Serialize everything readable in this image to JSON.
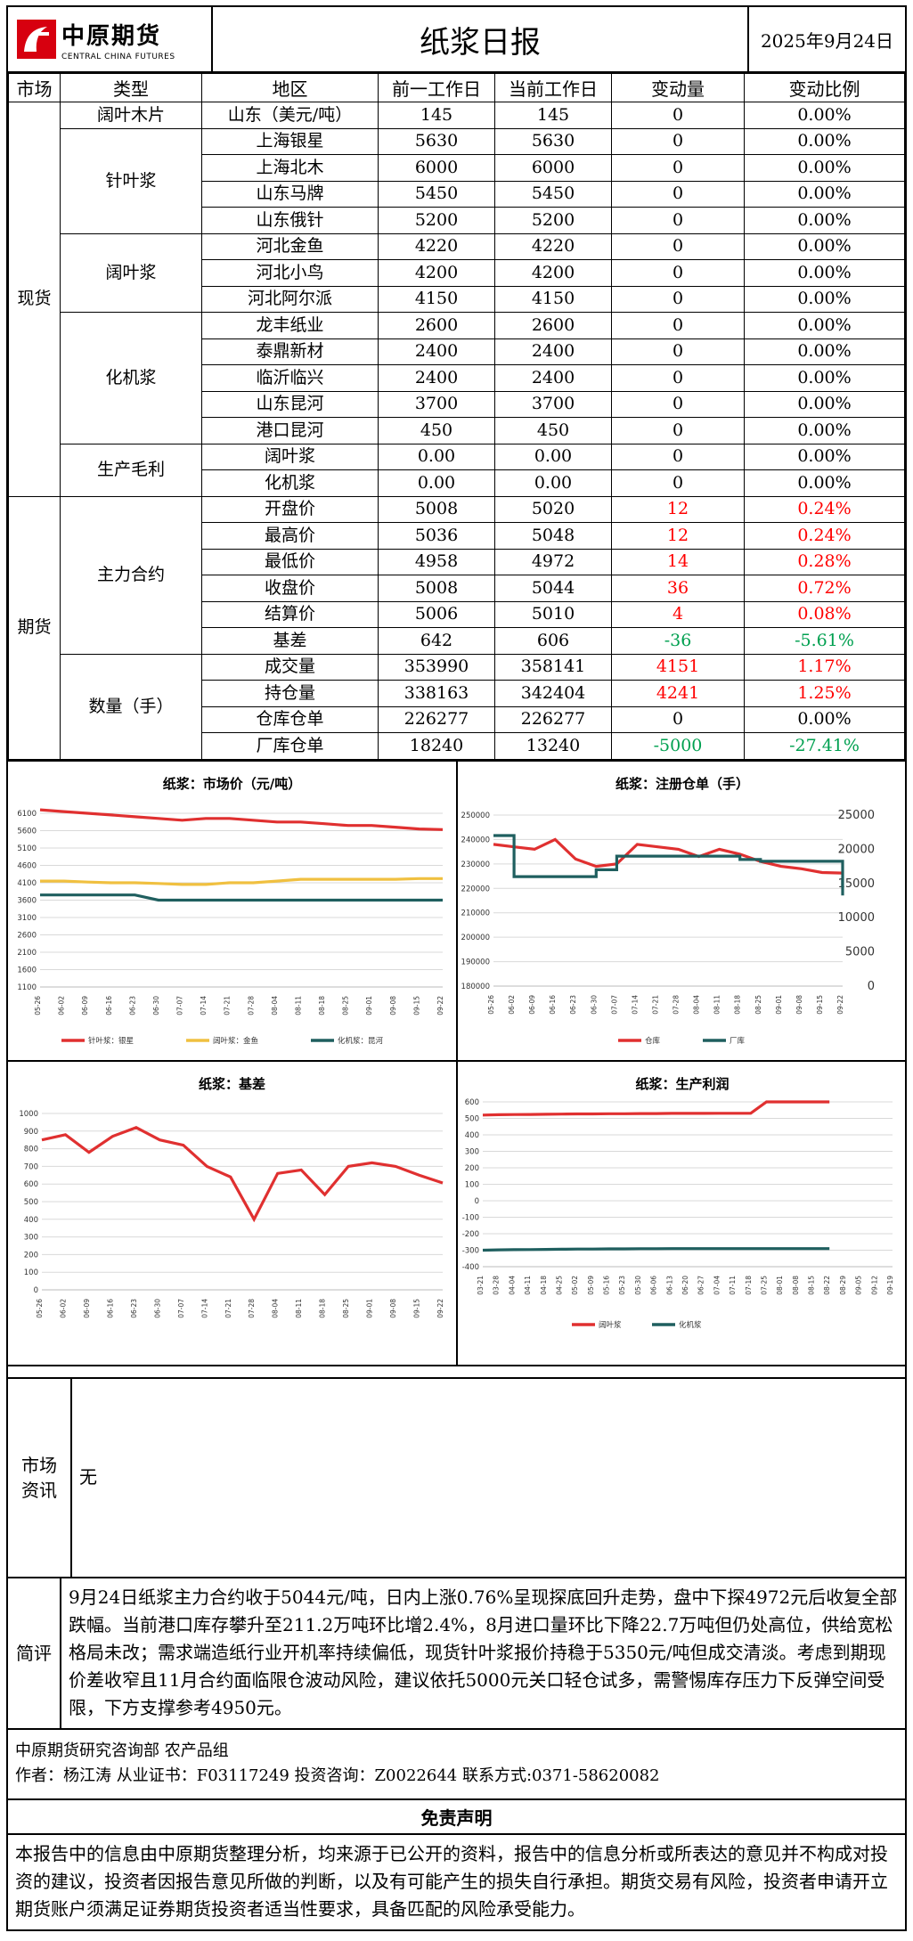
{
  "header": {
    "logo_cn": "中原期货",
    "logo_en": "CENTRAL CHINA FUTURES",
    "title": "纸浆日报",
    "date": "2025年9月24日"
  },
  "columns": [
    "市场",
    "类型",
    "地区",
    "前一工作日",
    "当前工作日",
    "变动量",
    "变动比例"
  ],
  "spot_label": "现货",
  "futures_label": "期货",
  "rows": [
    {
      "type": "阔叶木片",
      "region": "山东（美元/吨）",
      "prev": "145",
      "cur": "145",
      "chg": "0",
      "pct": "0.00%",
      "c": ""
    },
    {
      "type": "针叶浆",
      "region": "上海银星",
      "prev": "5630",
      "cur": "5630",
      "chg": "0",
      "pct": "0.00%",
      "c": ""
    },
    {
      "type": "",
      "region": "上海北木",
      "prev": "6000",
      "cur": "6000",
      "chg": "0",
      "pct": "0.00%",
      "c": ""
    },
    {
      "type": "",
      "region": "山东马牌",
      "prev": "5450",
      "cur": "5450",
      "chg": "0",
      "pct": "0.00%",
      "c": ""
    },
    {
      "type": "",
      "region": "山东俄针",
      "prev": "5200",
      "cur": "5200",
      "chg": "0",
      "pct": "0.00%",
      "c": ""
    },
    {
      "type": "阔叶浆",
      "region": "河北金鱼",
      "prev": "4220",
      "cur": "4220",
      "chg": "0",
      "pct": "0.00%",
      "c": ""
    },
    {
      "type": "",
      "region": "河北小鸟",
      "prev": "4200",
      "cur": "4200",
      "chg": "0",
      "pct": "0.00%",
      "c": ""
    },
    {
      "type": "",
      "region": "河北阿尔派",
      "prev": "4150",
      "cur": "4150",
      "chg": "0",
      "pct": "0.00%",
      "c": ""
    },
    {
      "type": "化机浆",
      "region": "龙丰纸业",
      "prev": "2600",
      "cur": "2600",
      "chg": "0",
      "pct": "0.00%",
      "c": ""
    },
    {
      "type": "",
      "region": "泰鼎新材",
      "prev": "2400",
      "cur": "2400",
      "chg": "0",
      "pct": "0.00%",
      "c": ""
    },
    {
      "type": "",
      "region": "临沂临兴",
      "prev": "2400",
      "cur": "2400",
      "chg": "0",
      "pct": "0.00%",
      "c": ""
    },
    {
      "type": "",
      "region": "山东昆河",
      "prev": "3700",
      "cur": "3700",
      "chg": "0",
      "pct": "0.00%",
      "c": ""
    },
    {
      "type": "",
      "region": "港口昆河",
      "prev": "450",
      "cur": "450",
      "chg": "0",
      "pct": "0.00%",
      "c": ""
    },
    {
      "type": "生产毛利",
      "region": "阔叶浆",
      "prev": "0.00",
      "cur": "0.00",
      "chg": "0",
      "pct": "0.00%",
      "c": ""
    },
    {
      "type": "",
      "region": "化机浆",
      "prev": "0.00",
      "cur": "0.00",
      "chg": "0",
      "pct": "0.00%",
      "c": ""
    },
    {
      "type": "主力合约",
      "region": "开盘价",
      "prev": "5008",
      "cur": "5020",
      "chg": "12",
      "pct": "0.24%",
      "c": "red"
    },
    {
      "type": "",
      "region": "最高价",
      "prev": "5036",
      "cur": "5048",
      "chg": "12",
      "pct": "0.24%",
      "c": "red"
    },
    {
      "type": "",
      "region": "最低价",
      "prev": "4958",
      "cur": "4972",
      "chg": "14",
      "pct": "0.28%",
      "c": "red"
    },
    {
      "type": "",
      "region": "收盘价",
      "prev": "5008",
      "cur": "5044",
      "chg": "36",
      "pct": "0.72%",
      "c": "red"
    },
    {
      "type": "",
      "region": "结算价",
      "prev": "5006",
      "cur": "5010",
      "chg": "4",
      "pct": "0.08%",
      "c": "red"
    },
    {
      "type": "",
      "region": "基差",
      "prev": "642",
      "cur": "606",
      "chg": "-36",
      "pct": "-5.61%",
      "c": "green"
    },
    {
      "type": "数量（手）",
      "region": "成交量",
      "prev": "353990",
      "cur": "358141",
      "chg": "4151",
      "pct": "1.17%",
      "c": "red"
    },
    {
      "type": "",
      "region": "持仓量",
      "prev": "338163",
      "cur": "342404",
      "chg": "4241",
      "pct": "1.25%",
      "c": "red"
    },
    {
      "type": "",
      "region": "仓库仓单",
      "prev": "226277",
      "cur": "226277",
      "chg": "0",
      "pct": "0.00%",
      "c": ""
    },
    {
      "type": "",
      "region": "厂库仓单",
      "prev": "18240",
      "cur": "13240",
      "chg": "-5000",
      "pct": "-27.41%",
      "c": "green"
    }
  ],
  "chart_data": [
    {
      "type": "line",
      "title": "纸浆：市场价（元/吨）",
      "x": [
        "05-26",
        "06-02",
        "06-09",
        "06-16",
        "06-23",
        "06-30",
        "07-07",
        "07-14",
        "07-21",
        "07-28",
        "08-04",
        "08-11",
        "08-18",
        "08-25",
        "09-01",
        "09-08",
        "09-15",
        "09-22"
      ],
      "yticks": [
        "6100",
        "5600",
        "5100",
        "4600",
        "4100",
        "3600",
        "3100",
        "2600",
        "2100",
        "1600",
        "1100"
      ],
      "ylim": [
        1100,
        6100
      ],
      "series": [
        {
          "name": "针叶浆：银星",
          "color": "#e03030",
          "values": [
            6200,
            6150,
            6100,
            6050,
            6000,
            5950,
            5900,
            5950,
            5950,
            5900,
            5850,
            5850,
            5800,
            5750,
            5750,
            5700,
            5650,
            5630
          ]
        },
        {
          "name": "阔叶浆：金鱼",
          "color": "#f0c040",
          "values": [
            4150,
            4150,
            4120,
            4100,
            4100,
            4080,
            4050,
            4050,
            4100,
            4100,
            4150,
            4200,
            4200,
            4200,
            4200,
            4200,
            4220,
            4220
          ]
        },
        {
          "name": "化机浆：昆河",
          "color": "#1f5f5f",
          "values": [
            3750,
            3750,
            3750,
            3750,
            3750,
            3600,
            3600,
            3600,
            3600,
            3600,
            3600,
            3600,
            3600,
            3600,
            3600,
            3600,
            3600,
            3600
          ]
        }
      ]
    },
    {
      "type": "line",
      "title": "纸浆：注册仓单（手）",
      "x": [
        "05-26",
        "06-02",
        "06-09",
        "06-16",
        "06-23",
        "06-30",
        "07-07",
        "07-14",
        "07-21",
        "07-28",
        "08-04",
        "08-11",
        "08-18",
        "08-25",
        "09-01",
        "09-08",
        "09-15",
        "09-22"
      ],
      "yticks_left": [
        "250000",
        "240000",
        "230000",
        "220000",
        "210000",
        "200000",
        "190000",
        "180000"
      ],
      "yticks_right": [
        "25000",
        "20000",
        "15000",
        "10000",
        "5000",
        "0"
      ],
      "ylim_left": [
        180000,
        250000
      ],
      "ylim_right": [
        0,
        25000
      ],
      "series": [
        {
          "name": "仓库",
          "color": "#e03030",
          "axis": "left",
          "values": [
            238000,
            237000,
            236000,
            240000,
            232000,
            229000,
            230000,
            238000,
            237000,
            236000,
            233000,
            236000,
            234000,
            231000,
            229000,
            228000,
            226500,
            226277
          ]
        },
        {
          "name": "厂库",
          "color": "#1f5f5f",
          "axis": "right",
          "values": [
            22000,
            16000,
            16000,
            16000,
            16000,
            17000,
            19000,
            19000,
            19000,
            19000,
            19000,
            19000,
            18500,
            18240,
            18240,
            18240,
            18240,
            13240
          ]
        }
      ]
    },
    {
      "type": "line",
      "title": "纸浆：基差",
      "x": [
        "05-26",
        "06-02",
        "06-09",
        "06-16",
        "06-23",
        "06-30",
        "07-07",
        "07-14",
        "07-21",
        "07-28",
        "08-04",
        "08-11",
        "08-18",
        "08-25",
        "09-01",
        "09-08",
        "09-15",
        "09-22"
      ],
      "yticks": [
        "1000",
        "900",
        "800",
        "700",
        "600",
        "500",
        "400",
        "300",
        "200",
        "100",
        "0"
      ],
      "ylim": [
        0,
        1000
      ],
      "series": [
        {
          "name": "基差",
          "color": "#e03030",
          "values": [
            850,
            880,
            780,
            870,
            920,
            850,
            820,
            700,
            640,
            400,
            660,
            680,
            540,
            700,
            720,
            700,
            650,
            606
          ]
        }
      ]
    },
    {
      "type": "line",
      "title": "纸浆：生产利润",
      "x": [
        "03-21",
        "03-28",
        "04-04",
        "04-11",
        "04-18",
        "04-25",
        "05-02",
        "05-09",
        "05-16",
        "05-23",
        "05-30",
        "06-06",
        "06-13",
        "06-20",
        "06-27",
        "07-04",
        "07-11",
        "07-18",
        "07-25",
        "08-01",
        "08-08",
        "08-15",
        "08-22",
        "08-29",
        "09-05",
        "09-12",
        "09-19"
      ],
      "yticks": [
        "600",
        "500",
        "400",
        "300",
        "200",
        "100",
        "0",
        "-100",
        "-200",
        "-300",
        "-400"
      ],
      "ylim": [
        -400,
        600
      ],
      "series": [
        {
          "name": "阔叶浆",
          "color": "#e03030",
          "values": [
            520,
            522,
            523,
            524,
            525,
            526,
            527,
            527,
            528,
            528,
            529,
            529,
            530,
            530,
            530,
            531,
            531,
            531,
            600,
            600,
            600,
            600,
            600,
            null,
            null,
            null,
            null
          ]
        },
        {
          "name": "化机浆",
          "color": "#1f5f5f",
          "values": [
            -300,
            -298,
            -297,
            -296,
            -295,
            -294,
            -293,
            -293,
            -292,
            -292,
            -291,
            -291,
            -290,
            -290,
            -290,
            -290,
            -290,
            -290,
            -290,
            -290,
            -290,
            -290,
            -290,
            null,
            null,
            null,
            null
          ]
        }
      ]
    }
  ],
  "market_info": {
    "label": "市场资讯",
    "text": "无"
  },
  "comment": {
    "label": "简评",
    "text": "9月24日纸浆主力合约收于5044元/吨，日内上涨0.76%呈现探底回升走势，盘中下探4972元后收复全部跌幅。当前港口库存攀升至211.2万吨环比增2.4%，8月进口量环比下降22.7万吨但仍处高位，供给宽松格局未改；需求端造纸行业开机率持续偏低，现货针叶浆报价持稳于5350元/吨但成交清淡。考虑到期现价差收窄且11月合约面临限仓波动风险，建议依托5000元关口轻仓试多，需警惕库存压力下反弹空间受限，下方支撑参考4950元。"
  },
  "author": {
    "line1": "中原期货研究咨询部  农产品组",
    "line2": "作者：杨江涛    从业证书：F03117249  投资咨询：Z0022644     联系方式:0371-58620082"
  },
  "disclaimer": {
    "title": "免责声明",
    "text": "本报告中的信息由中原期货整理分析，均来源于已公开的资料，报告中的信息分析或所表达的意见并不构成对投资的建议，投资者因报告意见所做的判断，以及有可能产生的损失自行承担。期货交易有风险，投资者申请开立期货账户须满足证券期货投资者适当性要求，具备匹配的风险承受能力。"
  }
}
